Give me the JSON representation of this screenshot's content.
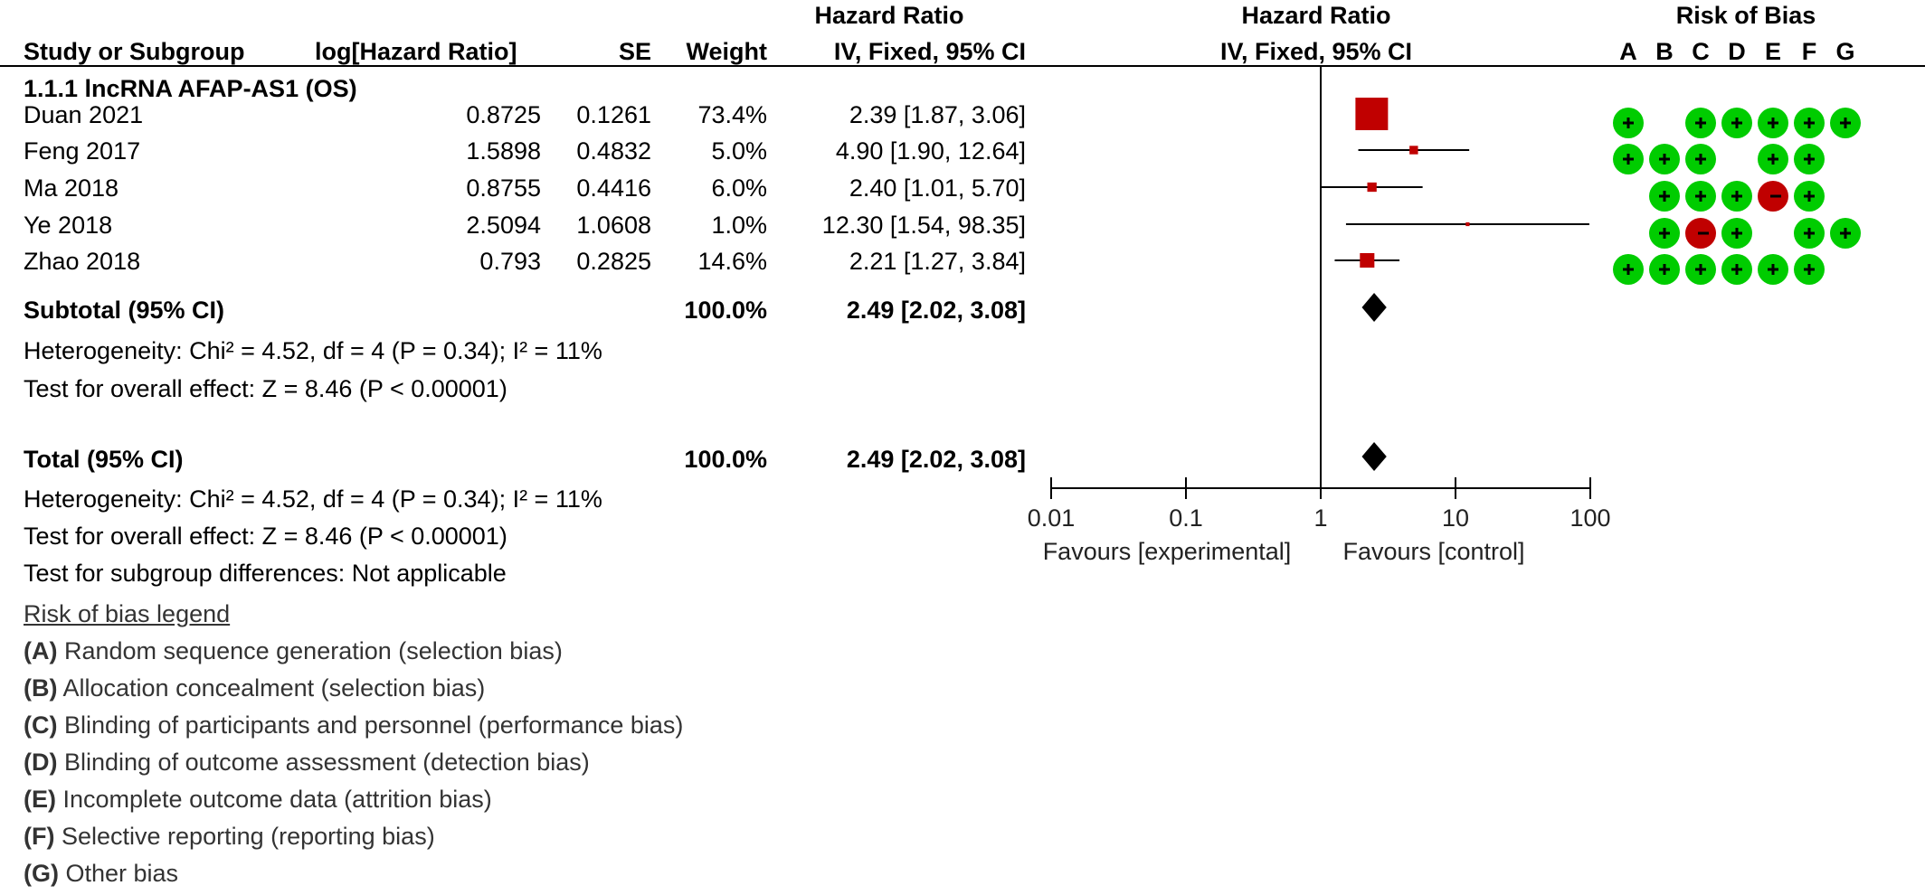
{
  "header": {
    "study": "Study or Subgroup",
    "loghr": "log[Hazard Ratio]",
    "se": "SE",
    "weight": "Weight",
    "hr_title": "Hazard Ratio",
    "hr_method": "IV, Fixed, 95% CI",
    "plot_title": "Hazard Ratio",
    "plot_method": "IV, Fixed, 95% CI",
    "rob_title": "Risk of Bias",
    "rob_letters": [
      "A",
      "B",
      "C",
      "D",
      "E",
      "F",
      "G"
    ]
  },
  "subgroup_title": "1.1.1 lncRNA AFAP-AS1 (OS)",
  "studies": [
    {
      "name": "Duan 2021",
      "loghr": "0.8725",
      "se": "0.1261",
      "weight": "73.4%",
      "ci": "2.39 [1.87, 3.06]"
    },
    {
      "name": "Feng 2017",
      "loghr": "1.5898",
      "se": "0.4832",
      "weight": "5.0%",
      "ci": "4.90 [1.90, 12.64]"
    },
    {
      "name": "Ma 2018",
      "loghr": "0.8755",
      "se": "0.4416",
      "weight": "6.0%",
      "ci": "2.40 [1.01, 5.70]"
    },
    {
      "name": "Ye 2018",
      "loghr": "2.5094",
      "se": "1.0608",
      "weight": "1.0%",
      "ci": "12.30 [1.54, 98.35]"
    },
    {
      "name": "Zhao 2018",
      "loghr": "0.793",
      "se": "0.2825",
      "weight": "14.6%",
      "ci": "2.21 [1.27, 3.84]"
    }
  ],
  "subtotal": {
    "label": "Subtotal (95% CI)",
    "weight": "100.0%",
    "ci": "2.49 [2.02, 3.08]"
  },
  "subtotal_het": "Heterogeneity: Chi² = 4.52, df = 4 (P = 0.34); I² = 11%",
  "subtotal_test": "Test for overall effect: Z = 8.46 (P < 0.00001)",
  "total": {
    "label": "Total (95% CI)",
    "weight": "100.0%",
    "ci": "2.49 [2.02, 3.08]"
  },
  "total_het": "Heterogeneity: Chi² = 4.52, df = 4 (P = 0.34); I² = 11%",
  "total_test": "Test for overall effect: Z = 8.46 (P < 0.00001)",
  "subgroup_diff": "Test for subgroup differences: Not applicable",
  "legend": {
    "title": "Risk of bias legend",
    "items": [
      {
        "letter": "(A)",
        "text": " Random sequence generation (selection bias)"
      },
      {
        "letter": "(B)",
        "text": " Allocation concealment (selection bias)"
      },
      {
        "letter": "(C)",
        "text": " Blinding of participants and personnel (performance bias)"
      },
      {
        "letter": "(D)",
        "text": " Blinding of outcome assessment (detection bias)"
      },
      {
        "letter": "(E)",
        "text": " Incomplete outcome data (attrition bias)"
      },
      {
        "letter": "(F)",
        "text": " Selective reporting (reporting bias)"
      },
      {
        "letter": "(G)",
        "text": " Other bias"
      }
    ]
  },
  "axis": {
    "favours_left": "Favours [experimental]",
    "favours_right": "Favours [control]"
  },
  "colors": {
    "square": "#c00000",
    "low_risk": "#00cc00",
    "high_risk": "#c00000",
    "line": "#000000"
  },
  "chart_data": {
    "type": "scatter",
    "title": "Hazard Ratio",
    "subtitle": "IV, Fixed, 95% CI",
    "x_scale": "log",
    "xlim": [
      0.01,
      100
    ],
    "x_ticks": [
      0.01,
      0.1,
      1,
      10,
      100
    ],
    "x_tick_labels": [
      "0.01",
      "0.1",
      "1",
      "10",
      "100"
    ],
    "reference_line": 1,
    "studies": [
      {
        "name": "Duan 2021",
        "hr": 2.39,
        "lower": 1.87,
        "upper": 3.06,
        "weight": 73.4
      },
      {
        "name": "Feng 2017",
        "hr": 4.9,
        "lower": 1.9,
        "upper": 12.64,
        "weight": 5.0
      },
      {
        "name": "Ma 2018",
        "hr": 2.4,
        "lower": 1.01,
        "upper": 5.7,
        "weight": 6.0
      },
      {
        "name": "Ye 2018",
        "hr": 12.3,
        "lower": 1.54,
        "upper": 98.35,
        "weight": 1.0
      },
      {
        "name": "Zhao 2018",
        "hr": 2.21,
        "lower": 1.27,
        "upper": 3.84,
        "weight": 14.6
      }
    ],
    "pooled": [
      {
        "name": "Subtotal (95% CI)",
        "hr": 2.49,
        "lower": 2.02,
        "upper": 3.08
      },
      {
        "name": "Total (95% CI)",
        "hr": 2.49,
        "lower": 2.02,
        "upper": 3.08
      }
    ],
    "risk_of_bias": {
      "domains": [
        "A",
        "B",
        "C",
        "D",
        "E",
        "F",
        "G"
      ],
      "rows": [
        [
          "+",
          "",
          "+",
          "+",
          "+",
          "+",
          "+"
        ],
        [
          "+",
          "+",
          "+",
          "",
          "+",
          "+",
          ""
        ],
        [
          "",
          "+",
          "+",
          "+",
          "-",
          "+",
          ""
        ],
        [
          "",
          "+",
          "-",
          "+",
          "",
          "+",
          "+"
        ],
        [
          "+",
          "+",
          "+",
          "+",
          "+",
          "+",
          ""
        ]
      ]
    }
  }
}
